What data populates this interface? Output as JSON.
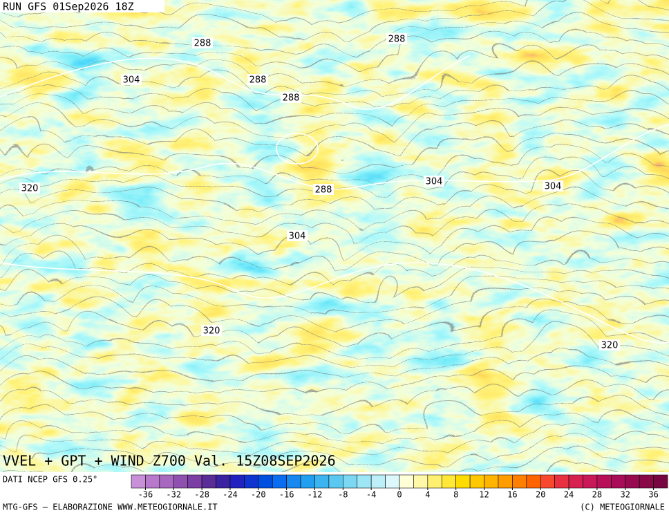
{
  "header": {
    "run": "RUN GFS 01Sep2026 18Z"
  },
  "map": {
    "title": "VVEL + GPT + WIND Z700 Val. 15Z08SEP2026",
    "contour_labels": [
      288,
      288,
      304,
      288,
      288,
      288,
      304,
      304,
      304,
      320,
      320,
      320
    ]
  },
  "colorbar": {
    "source": "DATI NCEP GFS 0.25°",
    "lim": [
      -38,
      38
    ],
    "ticks": [
      -36,
      -32,
      -28,
      -24,
      -20,
      -16,
      -12,
      -8,
      -4,
      0,
      4,
      8,
      12,
      16,
      20,
      24,
      28,
      32,
      36
    ],
    "colors": [
      "#c890d8",
      "#b878cc",
      "#a868c0",
      "#9050b0",
      "#7a3ea4",
      "#5a2c98",
      "#3a22a0",
      "#2222c0",
      "#1034d0",
      "#0050e0",
      "#0a6cf0",
      "#1688f0",
      "#22a0f0",
      "#3cb4f0",
      "#5ac8f0",
      "#7cd8f2",
      "#9ce6f6",
      "#bceff8",
      "#dcf8fc",
      "#ffffd8",
      "#fff8a8",
      "#fff070",
      "#ffe838",
      "#ffdc00",
      "#ffc800",
      "#ffb400",
      "#ff9c00",
      "#ff8000",
      "#ff6400",
      "#f84830",
      "#e83040",
      "#d82050",
      "#c81858",
      "#b81058",
      "#a80c58",
      "#980a50",
      "#880848",
      "#780640"
    ]
  },
  "footer": {
    "left": "MTG-GFS — ELABORAZIONE WWW.METEOGIORNALE.IT",
    "right": "(C) METEOGIORNALE"
  }
}
